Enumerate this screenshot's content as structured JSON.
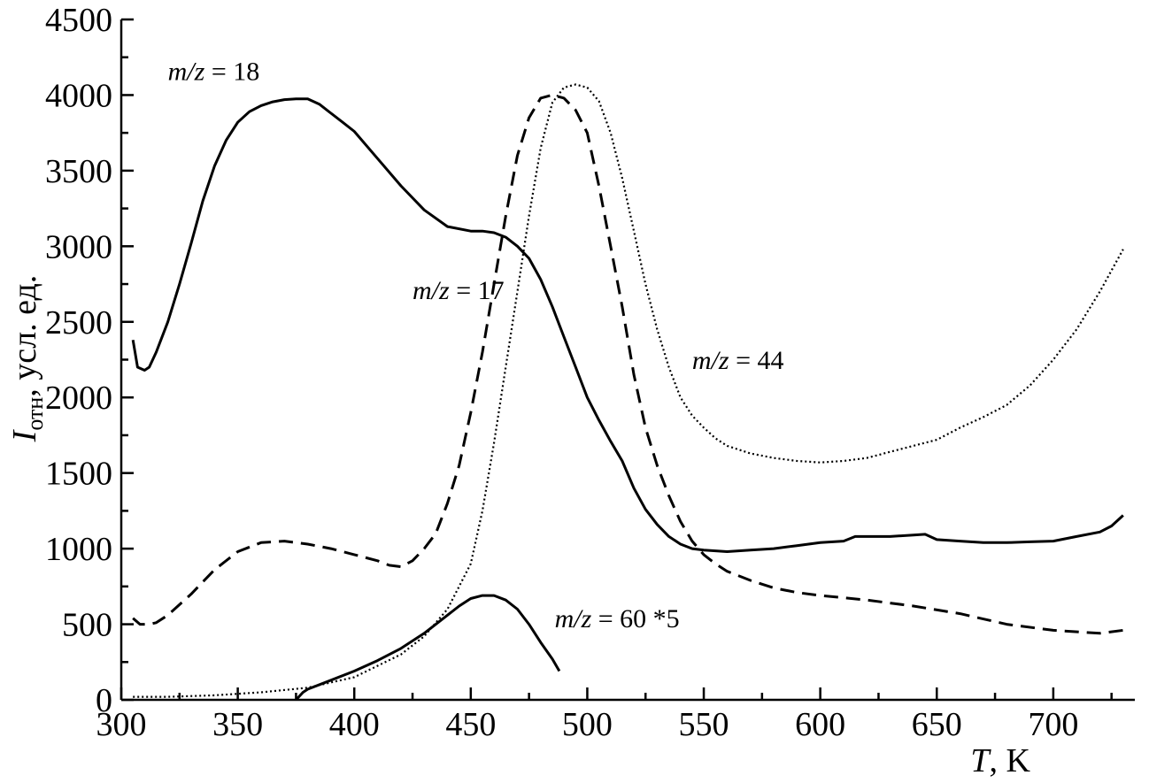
{
  "chart_data": {
    "type": "line",
    "title": "",
    "xlabel": "T, K",
    "ylabel": "Iотн, усл. ед.",
    "xlim": [
      300,
      735
    ],
    "ylim": [
      0,
      4500
    ],
    "x_ticks": [
      300,
      350,
      400,
      450,
      500,
      550,
      600,
      650,
      700
    ],
    "y_ticks": [
      0,
      500,
      1000,
      1500,
      2000,
      2500,
      3000,
      3500,
      4000,
      4500
    ],
    "grid": false,
    "legend": "none",
    "series": [
      {
        "name": "m/z = 18",
        "style": "solid",
        "x": [
          305,
          307,
          310,
          312,
          315,
          320,
          325,
          330,
          335,
          340,
          345,
          350,
          355,
          360,
          365,
          370,
          375,
          380,
          385,
          390,
          395,
          400,
          410,
          420,
          430,
          440,
          450,
          455,
          460,
          465,
          470,
          475,
          480,
          485,
          490,
          495,
          500,
          505,
          510,
          515,
          520,
          525,
          530,
          535,
          540,
          545,
          550,
          560,
          570,
          580,
          590,
          600,
          610,
          615,
          620,
          630,
          640,
          645,
          650,
          660,
          670,
          680,
          690,
          700,
          710,
          720,
          725,
          730
        ],
        "y": [
          2380,
          2200,
          2180,
          2200,
          2300,
          2500,
          2750,
          3020,
          3300,
          3530,
          3700,
          3820,
          3890,
          3930,
          3955,
          3970,
          3975,
          3975,
          3940,
          3880,
          3820,
          3760,
          3580,
          3400,
          3240,
          3130,
          3100,
          3100,
          3090,
          3060,
          3000,
          2920,
          2780,
          2600,
          2400,
          2200,
          2000,
          1850,
          1710,
          1580,
          1400,
          1260,
          1160,
          1080,
          1030,
          1000,
          990,
          980,
          990,
          1000,
          1020,
          1040,
          1050,
          1080,
          1080,
          1080,
          1090,
          1095,
          1060,
          1050,
          1040,
          1040,
          1045,
          1050,
          1080,
          1110,
          1150,
          1220
        ]
      },
      {
        "name": "m/z = 17",
        "style": "dashed",
        "x": [
          305,
          308,
          312,
          315,
          320,
          330,
          340,
          350,
          360,
          370,
          380,
          390,
          400,
          410,
          415,
          420,
          425,
          430,
          435,
          440,
          445,
          450,
          455,
          460,
          465,
          470,
          475,
          480,
          485,
          490,
          495,
          500,
          505,
          510,
          515,
          520,
          525,
          530,
          535,
          540,
          545,
          550,
          555,
          560,
          570,
          580,
          590,
          600,
          620,
          640,
          660,
          680,
          700,
          720,
          730
        ],
        "y": [
          540,
          500,
          500,
          510,
          560,
          700,
          860,
          980,
          1040,
          1050,
          1030,
          1000,
          960,
          920,
          890,
          880,
          920,
          1000,
          1100,
          1300,
          1550,
          1900,
          2300,
          2750,
          3200,
          3600,
          3850,
          3980,
          4000,
          3980,
          3900,
          3750,
          3400,
          3000,
          2600,
          2150,
          1800,
          1550,
          1350,
          1180,
          1050,
          960,
          900,
          850,
          790,
          740,
          710,
          690,
          660,
          620,
          570,
          500,
          460,
          440,
          460
        ]
      },
      {
        "name": "m/z = 44",
        "style": "dotted",
        "x": [
          305,
          320,
          340,
          360,
          380,
          400,
          420,
          430,
          440,
          450,
          455,
          460,
          465,
          470,
          475,
          480,
          485,
          490,
          495,
          500,
          505,
          510,
          515,
          520,
          525,
          530,
          535,
          540,
          545,
          550,
          555,
          560,
          570,
          580,
          590,
          600,
          610,
          620,
          630,
          640,
          650,
          660,
          670,
          680,
          690,
          700,
          710,
          720,
          730
        ],
        "y": [
          20,
          20,
          30,
          50,
          80,
          150,
          300,
          420,
          600,
          900,
          1250,
          1700,
          2200,
          2700,
          3200,
          3650,
          3950,
          4050,
          4070,
          4050,
          3960,
          3750,
          3450,
          3100,
          2750,
          2450,
          2200,
          2000,
          1880,
          1800,
          1730,
          1680,
          1630,
          1600,
          1580,
          1570,
          1580,
          1600,
          1640,
          1680,
          1720,
          1800,
          1870,
          1950,
          2080,
          2250,
          2450,
          2700,
          2980
        ]
      },
      {
        "name": "m/z = 60 *5",
        "style": "solid",
        "x": [
          375,
          378,
          380,
          390,
          400,
          410,
          420,
          430,
          440,
          445,
          450,
          455,
          460,
          465,
          470,
          475,
          480,
          485,
          488
        ],
        "y": [
          0,
          50,
          70,
          130,
          190,
          260,
          340,
          440,
          560,
          620,
          670,
          690,
          690,
          660,
          600,
          500,
          380,
          270,
          190
        ]
      }
    ],
    "annotations": [
      {
        "text_italic": "m/z",
        "text_rest": " = 18",
        "x": 320,
        "y": 4100
      },
      {
        "text_italic": "m/z",
        "text_rest": " = 17",
        "x": 425,
        "y": 2650
      },
      {
        "text_italic": "m/z",
        "text_rest": " = 44",
        "x": 545,
        "y": 2190
      },
      {
        "text_italic": "m/z",
        "text_rest": " = 60 *5",
        "x": 486,
        "y": 480
      }
    ]
  }
}
